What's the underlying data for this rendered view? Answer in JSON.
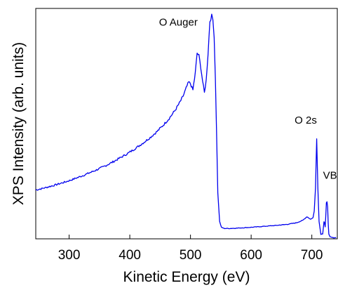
{
  "chart_data": {
    "type": "line",
    "title": "",
    "xlabel": "Kinetic Energy (eV)",
    "ylabel": "XPS Intensity (arb. units)",
    "xlim": [
      245,
      742
    ],
    "ylim": [
      0,
      100
    ],
    "x_ticks": [
      300,
      400,
      500,
      600,
      700
    ],
    "y_ticks": [],
    "grid": false,
    "legend": "none",
    "series": [
      {
        "color": "#0000ee",
        "x": [
          245,
          255,
          265,
          275,
          285,
          295,
          305,
          315,
          325,
          335,
          345,
          355,
          365,
          375,
          385,
          395,
          405,
          415,
          425,
          435,
          445,
          455,
          465,
          475,
          483,
          488,
          493,
          497,
          500,
          504,
          508,
          511,
          514,
          517,
          520,
          523,
          526,
          529,
          532,
          535,
          537,
          539,
          541,
          543,
          545,
          548,
          551,
          556,
          565,
          580,
          600,
          620,
          640,
          660,
          675,
          685,
          692,
          698,
          702,
          704,
          706,
          708,
          710,
          712,
          715,
          718,
          720,
          721,
          722,
          723,
          724,
          725,
          726,
          727,
          728,
          730,
          735,
          740
        ],
        "y": [
          21.2,
          21.8,
          22.5,
          23.2,
          24.0,
          24.8,
          25.7,
          26.7,
          27.7,
          28.8,
          29.9,
          31.1,
          32.4,
          33.8,
          35.3,
          36.8,
          38.5,
          40.3,
          42.2,
          44.3,
          46.6,
          49.3,
          52.3,
          55.9,
          59.5,
          62.0,
          65.5,
          68.0,
          67.3,
          64.6,
          72.0,
          80.6,
          79.5,
          74.5,
          68.5,
          63.4,
          69.0,
          80.5,
          94.5,
          96.8,
          95.0,
          88.0,
          70.0,
          47.0,
          20.0,
          7.5,
          5.0,
          4.5,
          4.5,
          4.7,
          5.0,
          5.4,
          5.8,
          6.3,
          7.0,
          8.0,
          9.6,
          8.5,
          9.2,
          12.0,
          22.0,
          43.5,
          22.0,
          7.5,
          2.0,
          2.2,
          7.5,
          7.0,
          5.2,
          10.0,
          15.5,
          16.0,
          14.0,
          7.0,
          2.0,
          0.8,
          0.5,
          0.5
        ]
      }
    ],
    "annotations": [
      {
        "text": "O Auger",
        "x": 480,
        "y": 92.5
      },
      {
        "text": "O 2s",
        "x": 690,
        "y": 50.0
      },
      {
        "text": "VB",
        "x": 730,
        "y": 26.0
      }
    ]
  }
}
